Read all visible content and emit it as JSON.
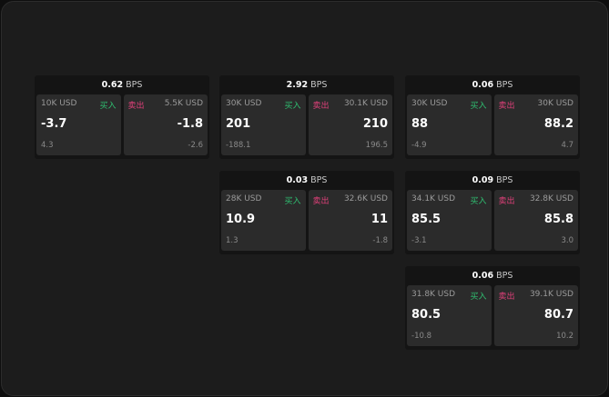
{
  "unit": "BPS",
  "buy_label": "买入",
  "sell_label": "卖出",
  "colors": {
    "buy": "#2fbf71",
    "sell": "#e0407a"
  },
  "cards": [
    {
      "spread": "0.62",
      "bid_size": "10K USD",
      "bid": "-3.7",
      "bid_chg": "4.3",
      "ask_size": "5.5K USD",
      "ask": "-1.8",
      "ask_chg": "-2.6"
    },
    {
      "spread": "2.92",
      "bid_size": "30K USD",
      "bid": "201",
      "bid_chg": "-188.1",
      "ask_size": "30.1K USD",
      "ask": "210",
      "ask_chg": "196.5"
    },
    {
      "spread": "0.06",
      "bid_size": "30K USD",
      "bid": "88",
      "bid_chg": "-4.9",
      "ask_size": "30K USD",
      "ask": "88.2",
      "ask_chg": "4.7"
    },
    {
      "spread": "0.03",
      "bid_size": "28K USD",
      "bid": "10.9",
      "bid_chg": "1.3",
      "ask_size": "32.6K USD",
      "ask": "11",
      "ask_chg": "-1.8"
    },
    {
      "spread": "0.09",
      "bid_size": "34.1K USD",
      "bid": "85.5",
      "bid_chg": "-3.1",
      "ask_size": "32.8K USD",
      "ask": "85.8",
      "ask_chg": "3.0"
    },
    {
      "spread": "0.06",
      "bid_size": "31.8K USD",
      "bid": "80.5",
      "bid_chg": "-10.8",
      "ask_size": "39.1K USD",
      "ask": "80.7",
      "ask_chg": "10.2"
    }
  ]
}
